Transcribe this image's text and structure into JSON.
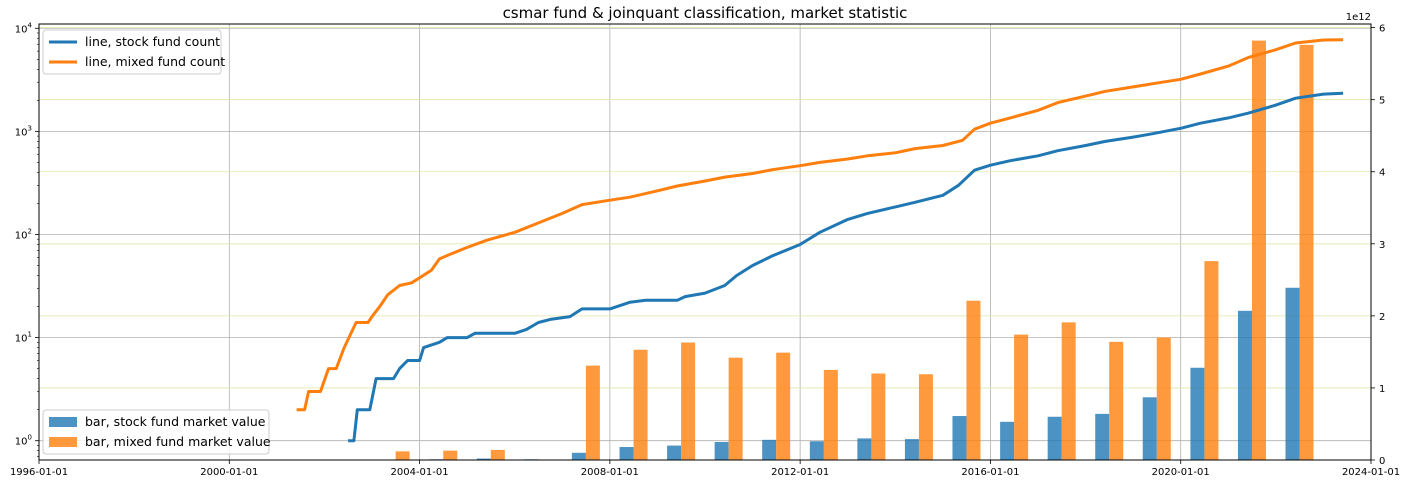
{
  "chart_data": {
    "type": "bar+line",
    "title": "csmar fund & joinquant classification, market statistic",
    "x_axis": {
      "type": "date",
      "range": [
        "1996-01-01",
        "2024-01-01"
      ],
      "ticks": [
        "1996-01-01",
        "2000-01-01",
        "2004-01-01",
        "2008-01-01",
        "2012-01-01",
        "2016-01-01",
        "2020-01-01",
        "2024-01-01"
      ],
      "grid": true
    },
    "y_left": {
      "scale": "log",
      "range": [
        0.65,
        11000
      ],
      "ticks": [
        1,
        10,
        100,
        1000,
        10000
      ],
      "tick_labels": [
        {
          "base": "10",
          "exp": "0"
        },
        {
          "base": "10",
          "exp": "1"
        },
        {
          "base": "10",
          "exp": "2"
        },
        {
          "base": "10",
          "exp": "3"
        },
        {
          "base": "10",
          "exp": "4"
        }
      ],
      "grid": true
    },
    "y_right": {
      "scale": "linear",
      "range": [
        0,
        6.05
      ],
      "ticks": [
        0,
        1,
        2,
        3,
        4,
        5,
        6
      ],
      "tick_labels": [
        "0",
        "1",
        "2",
        "3",
        "4",
        "5",
        "6"
      ],
      "multiplier_label": "1e12",
      "grid": true,
      "grid_color": "#e3e6a8"
    },
    "bar_series": [
      {
        "name": "bar, stock fund market value",
        "color": "#1f77b4",
        "x": [
          "2003-07-01",
          "2004-07-01",
          "2005-07-01",
          "2006-07-01",
          "2007-07-01",
          "2008-07-01",
          "2009-07-01",
          "2010-07-01",
          "2011-07-01",
          "2012-07-01",
          "2013-07-01",
          "2014-07-01",
          "2015-07-01",
          "2016-07-01",
          "2017-07-01",
          "2018-07-01",
          "2019-07-01",
          "2020-07-01",
          "2021-07-01",
          "2022-07-01"
        ],
        "values": [
          0.005,
          0.01,
          0.02,
          0.01,
          0.1,
          0.18,
          0.2,
          0.25,
          0.28,
          0.26,
          0.3,
          0.29,
          0.61,
          0.53,
          0.6,
          0.64,
          0.87,
          1.28,
          2.07,
          2.39
        ]
      },
      {
        "name": "bar, mixed fund market value",
        "color": "#ff7f0e",
        "x": [
          "2003-07-01",
          "2004-07-01",
          "2005-07-01",
          "2006-07-01",
          "2007-07-01",
          "2008-07-01",
          "2009-07-01",
          "2010-07-01",
          "2011-07-01",
          "2012-07-01",
          "2013-07-01",
          "2014-07-01",
          "2015-07-01",
          "2016-07-01",
          "2017-07-01",
          "2018-07-01",
          "2019-07-01",
          "2020-07-01",
          "2021-07-01",
          "2022-07-01"
        ],
        "values": [
          0.12,
          0.13,
          0.14,
          0.0,
          1.31,
          1.53,
          1.63,
          1.42,
          1.49,
          1.25,
          1.2,
          1.19,
          2.21,
          1.74,
          1.91,
          1.64,
          1.7,
          2.76,
          5.82,
          5.76
        ]
      }
    ],
    "line_series": [
      {
        "name": "line, stock fund count",
        "color": "#1f77b4",
        "points": [
          [
            "2002-07-01",
            1
          ],
          [
            "2002-08-15",
            1
          ],
          [
            "2002-09-10",
            2
          ],
          [
            "2002-12-15",
            2
          ],
          [
            "2003-02-01",
            4
          ],
          [
            "2003-06-15",
            4
          ],
          [
            "2003-08-01",
            5
          ],
          [
            "2003-10-01",
            6
          ],
          [
            "2004-01-01",
            6
          ],
          [
            "2004-02-01",
            8
          ],
          [
            "2004-06-01",
            9
          ],
          [
            "2004-08-01",
            10
          ],
          [
            "2005-01-01",
            10
          ],
          [
            "2005-03-01",
            11
          ],
          [
            "2006-01-01",
            11
          ],
          [
            "2006-04-01",
            12
          ],
          [
            "2006-07-01",
            14
          ],
          [
            "2006-10-01",
            15
          ],
          [
            "2007-03-01",
            16
          ],
          [
            "2007-06-01",
            19
          ],
          [
            "2008-01-01",
            19
          ],
          [
            "2008-06-01",
            22
          ],
          [
            "2008-10-01",
            23
          ],
          [
            "2009-06-01",
            23
          ],
          [
            "2009-08-01",
            25
          ],
          [
            "2010-01-01",
            27
          ],
          [
            "2010-06-01",
            32
          ],
          [
            "2010-09-01",
            40
          ],
          [
            "2011-01-01",
            50
          ],
          [
            "2011-06-01",
            62
          ],
          [
            "2012-01-01",
            80
          ],
          [
            "2012-06-01",
            105
          ],
          [
            "2013-01-01",
            140
          ],
          [
            "2013-06-01",
            160
          ],
          [
            "2014-01-01",
            185
          ],
          [
            "2014-06-01",
            205
          ],
          [
            "2015-01-01",
            240
          ],
          [
            "2015-05-01",
            300
          ],
          [
            "2015-09-01",
            420
          ],
          [
            "2016-01-01",
            470
          ],
          [
            "2016-06-01",
            520
          ],
          [
            "2017-01-01",
            580
          ],
          [
            "2017-06-01",
            650
          ],
          [
            "2018-01-01",
            730
          ],
          [
            "2018-06-01",
            800
          ],
          [
            "2019-01-01",
            880
          ],
          [
            "2019-06-01",
            950
          ],
          [
            "2020-01-01",
            1070
          ],
          [
            "2020-06-01",
            1200
          ],
          [
            "2021-01-01",
            1350
          ],
          [
            "2021-06-01",
            1500
          ],
          [
            "2022-01-01",
            1800
          ],
          [
            "2022-06-01",
            2100
          ],
          [
            "2023-01-01",
            2300
          ],
          [
            "2023-06-01",
            2340
          ]
        ]
      },
      {
        "name": "line, mixed fund count",
        "color": "#ff7f0e",
        "points": [
          [
            "2001-06-01",
            2
          ],
          [
            "2001-08-01",
            2
          ],
          [
            "2001-09-01",
            3
          ],
          [
            "2001-12-01",
            3
          ],
          [
            "2002-02-01",
            5
          ],
          [
            "2002-04-01",
            5
          ],
          [
            "2002-06-01",
            8
          ],
          [
            "2002-09-01",
            14
          ],
          [
            "2002-12-01",
            14
          ],
          [
            "2003-01-01",
            16
          ],
          [
            "2003-03-01",
            20
          ],
          [
            "2003-05-01",
            26
          ],
          [
            "2003-08-01",
            32
          ],
          [
            "2003-11-01",
            34
          ],
          [
            "2004-01-01",
            38
          ],
          [
            "2004-04-01",
            45
          ],
          [
            "2004-06-01",
            58
          ],
          [
            "2004-09-01",
            65
          ],
          [
            "2005-01-01",
            75
          ],
          [
            "2005-06-01",
            88
          ],
          [
            "2006-01-01",
            105
          ],
          [
            "2006-06-01",
            125
          ],
          [
            "2007-01-01",
            160
          ],
          [
            "2007-06-01",
            195
          ],
          [
            "2008-01-01",
            215
          ],
          [
            "2008-06-01",
            230
          ],
          [
            "2009-01-01",
            265
          ],
          [
            "2009-06-01",
            295
          ],
          [
            "2010-01-01",
            330
          ],
          [
            "2010-06-01",
            360
          ],
          [
            "2011-01-01",
            390
          ],
          [
            "2011-06-01",
            425
          ],
          [
            "2012-01-01",
            465
          ],
          [
            "2012-06-01",
            500
          ],
          [
            "2013-01-01",
            540
          ],
          [
            "2013-06-01",
            580
          ],
          [
            "2014-01-01",
            620
          ],
          [
            "2014-06-01",
            680
          ],
          [
            "2015-01-01",
            730
          ],
          [
            "2015-06-01",
            820
          ],
          [
            "2015-09-01",
            1050
          ],
          [
            "2016-01-01",
            1200
          ],
          [
            "2016-06-01",
            1350
          ],
          [
            "2017-01-01",
            1600
          ],
          [
            "2017-06-01",
            1900
          ],
          [
            "2018-01-01",
            2200
          ],
          [
            "2018-06-01",
            2450
          ],
          [
            "2019-01-01",
            2700
          ],
          [
            "2019-06-01",
            2900
          ],
          [
            "2020-01-01",
            3200
          ],
          [
            "2020-06-01",
            3600
          ],
          [
            "2021-01-01",
            4300
          ],
          [
            "2021-06-01",
            5200
          ],
          [
            "2022-01-01",
            6200
          ],
          [
            "2022-06-01",
            7200
          ],
          [
            "2023-01-01",
            7700
          ],
          [
            "2023-06-01",
            7750
          ]
        ]
      }
    ],
    "legends": [
      {
        "position": "upper-left",
        "entries": [
          "line, stock fund count",
          "line, mixed fund count"
        ]
      },
      {
        "position": "lower-left",
        "entries": [
          "bar, stock fund market value",
          "bar, mixed fund market value"
        ]
      }
    ]
  }
}
